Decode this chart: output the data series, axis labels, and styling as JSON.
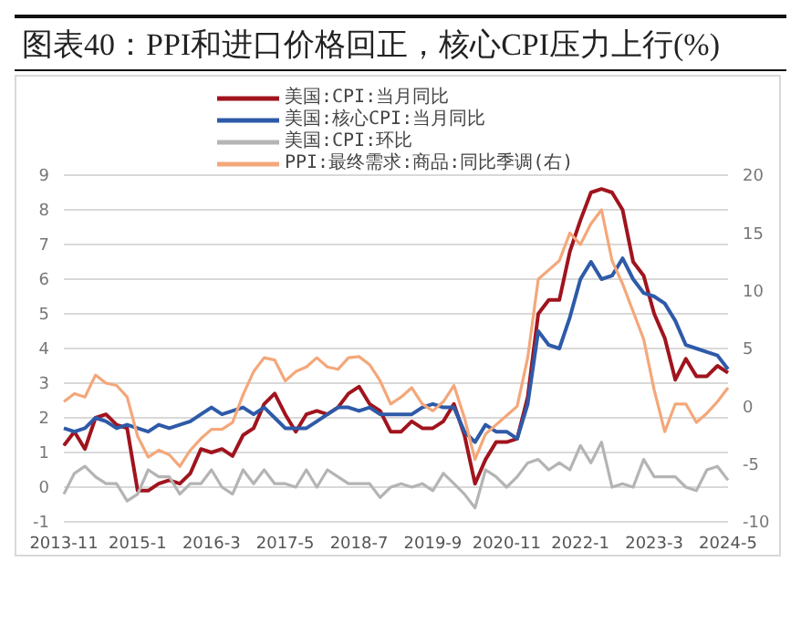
{
  "chart_data": {
    "type": "line",
    "title": "图表40：PPI和进口价格回正，核心CPI压力上行(%)",
    "categories": [
      "2013-11",
      null,
      null,
      null,
      null,
      null,
      null,
      "2015-1",
      null,
      null,
      null,
      null,
      null,
      null,
      "2016-3",
      null,
      null,
      null,
      null,
      null,
      null,
      "2017-5",
      null,
      null,
      null,
      null,
      null,
      null,
      "2018-7",
      null,
      null,
      null,
      null,
      null,
      null,
      "2019-9",
      null,
      null,
      null,
      null,
      null,
      null,
      "2020-11",
      null,
      null,
      null,
      null,
      null,
      null,
      "2022-1",
      null,
      null,
      null,
      null,
      null,
      null,
      "2023-3",
      null,
      null,
      null,
      null,
      null,
      null,
      "2024-5"
    ],
    "series": [
      {
        "name": "美国:CPI:当月同比",
        "color": "#a0141e",
        "values": [
          1.2,
          1.6,
          1.1,
          2.0,
          2.1,
          1.8,
          1.7,
          -0.1,
          -0.1,
          0.1,
          0.2,
          0.1,
          0.4,
          1.1,
          1.0,
          1.1,
          0.9,
          1.5,
          1.7,
          2.4,
          2.7,
          2.1,
          1.6,
          2.1,
          2.2,
          2.1,
          2.3,
          2.7,
          2.9,
          2.4,
          2.2,
          1.6,
          1.6,
          1.9,
          1.7,
          1.7,
          1.9,
          2.4,
          1.5,
          0.1,
          0.8,
          1.3,
          1.3,
          1.4,
          2.6,
          5.0,
          5.4,
          5.4,
          6.8,
          7.7,
          8.5,
          8.6,
          8.5,
          8.0,
          6.5,
          6.1,
          5.0,
          4.3,
          3.1,
          3.7,
          3.2,
          3.2,
          3.5,
          3.3
        ]
      },
      {
        "name": "美国:核心CPI:当月同比",
        "color": "#2e5aa8",
        "values": [
          1.7,
          1.6,
          1.7,
          2.0,
          1.9,
          1.7,
          1.8,
          1.7,
          1.6,
          1.8,
          1.7,
          1.8,
          1.9,
          2.1,
          2.3,
          2.1,
          2.2,
          2.3,
          2.1,
          2.3,
          2.0,
          1.7,
          1.7,
          1.7,
          1.9,
          2.1,
          2.3,
          2.3,
          2.2,
          2.3,
          2.1,
          2.1,
          2.1,
          2.1,
          2.3,
          2.4,
          2.3,
          2.3,
          1.6,
          1.3,
          1.8,
          1.6,
          1.6,
          1.4,
          2.4,
          4.5,
          4.1,
          4.0,
          4.9,
          6.0,
          6.5,
          6.0,
          6.1,
          6.6,
          6.0,
          5.6,
          5.5,
          5.3,
          4.8,
          4.1,
          4.0,
          3.9,
          3.8,
          3.4
        ]
      },
      {
        "name": "美国:CPI:环比",
        "color": "#b4b4b4",
        "values": [
          -0.2,
          0.4,
          0.6,
          0.3,
          0.1,
          0.1,
          -0.4,
          -0.2,
          0.5,
          0.3,
          0.3,
          -0.2,
          0.1,
          0.1,
          0.5,
          0.0,
          -0.2,
          0.5,
          0.1,
          0.5,
          0.1,
          0.1,
          0.0,
          0.5,
          0.0,
          0.5,
          0.3,
          0.1,
          0.1,
          0.1,
          -0.3,
          0.0,
          0.1,
          0.0,
          0.1,
          -0.1,
          0.4,
          0.1,
          -0.2,
          -0.6,
          0.5,
          0.3,
          0.0,
          0.3,
          0.7,
          0.8,
          0.5,
          0.7,
          0.5,
          1.2,
          0.7,
          1.3,
          0.0,
          0.1,
          0.0,
          0.8,
          0.3,
          0.3,
          0.3,
          0.0,
          -0.1,
          0.5,
          0.6,
          0.2
        ]
      },
      {
        "name": "PPI:最终需求:商品:同比季调(右)",
        "color": "#f4a77a",
        "axis": "y2",
        "values": [
          0.4,
          1.1,
          0.8,
          2.7,
          2.0,
          1.8,
          0.8,
          -2.6,
          -4.4,
          -3.8,
          -4.2,
          -5.2,
          -3.8,
          -2.8,
          -2.0,
          -2.0,
          -1.4,
          1.0,
          3.0,
          4.2,
          4.0,
          2.2,
          3.0,
          3.4,
          4.2,
          3.4,
          3.2,
          4.2,
          4.3,
          3.6,
          2.2,
          0.2,
          0.8,
          1.6,
          0.2,
          -0.4,
          0.4,
          1.8,
          -1.0,
          -4.6,
          -2.4,
          -1.6,
          -0.8,
          0.0,
          4.2,
          11.0,
          11.8,
          12.6,
          15.0,
          14.0,
          15.8,
          17.0,
          12.6,
          10.6,
          8.2,
          5.8,
          1.4,
          -2.2,
          0.2,
          0.2,
          -1.4,
          -0.6,
          0.4,
          1.6
        ]
      }
    ],
    "ylim": [
      -1,
      9
    ],
    "yticks": [
      -1,
      0,
      1,
      2,
      3,
      4,
      5,
      6,
      7,
      8,
      9
    ],
    "y2lim": [
      -10,
      20
    ],
    "y2ticks": [
      -10,
      -5,
      0,
      5,
      10,
      15,
      20
    ],
    "grid": "y",
    "legend": "top",
    "marker": "none",
    "line_style": "solid"
  }
}
